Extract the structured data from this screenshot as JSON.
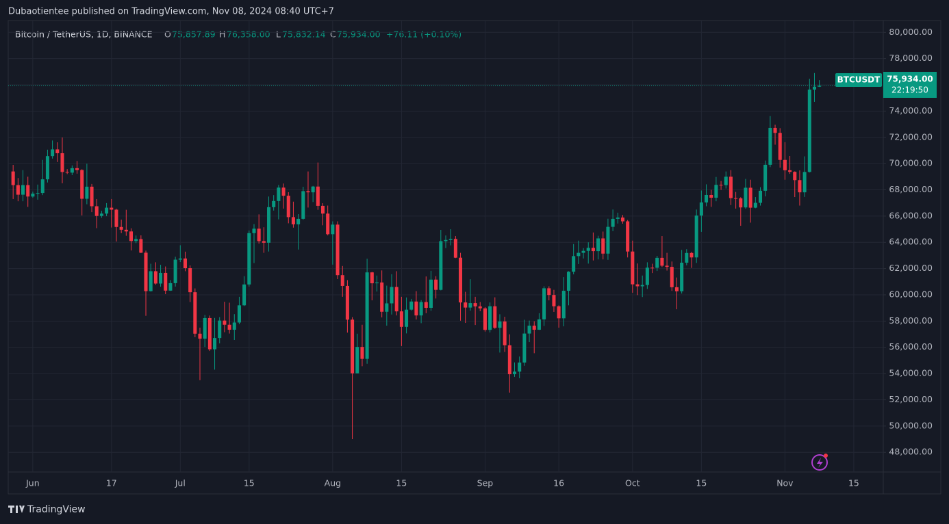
{
  "header": {
    "byline": "Dubaotientee published on TradingView.com, Nov 08, 2024 08:40 UTC+7",
    "footer": "TradingView"
  },
  "chart_data": {
    "type": "candlestick",
    "symbol": "Bitcoin / TetherUS, 1D, BINANCE",
    "legend": {
      "O": "75,857.89",
      "H": "76,358.00",
      "L": "75,832.14",
      "C": "75,934.00",
      "change": "+76.11 (+0.10%)"
    },
    "price_label": {
      "ticker": "BTCUSDT",
      "price": "75,934.00",
      "countdown": "22:19:50"
    },
    "up_color": "#089981",
    "down_color": "#f23645",
    "xlim": [
      "2024-05-27",
      "2024-11-21"
    ],
    "xticks": [
      {
        "value": "2024-06-01",
        "label": "Jun"
      },
      {
        "value": "2024-06-17",
        "label": "17"
      },
      {
        "value": "2024-07-01",
        "label": "Jul"
      },
      {
        "value": "2024-07-15",
        "label": "15"
      },
      {
        "value": "2024-08-01",
        "label": "Aug"
      },
      {
        "value": "2024-08-15",
        "label": "15"
      },
      {
        "value": "2024-09-01",
        "label": "Sep"
      },
      {
        "value": "2024-09-16",
        "label": "16"
      },
      {
        "value": "2024-10-01",
        "label": "Oct"
      },
      {
        "value": "2024-10-15",
        "label": "15"
      },
      {
        "value": "2024-11-01",
        "label": "Nov"
      },
      {
        "value": "2024-11-15",
        "label": "15"
      }
    ],
    "ylim": [
      46500,
      80900
    ],
    "yticks": [
      {
        "value": 48000,
        "label": "48,000.00"
      },
      {
        "value": 50000,
        "label": "50,000.00"
      },
      {
        "value": 52000,
        "label": "52,000.00"
      },
      {
        "value": 54000,
        "label": "54,000.00"
      },
      {
        "value": 56000,
        "label": "56,000.00"
      },
      {
        "value": 58000,
        "label": "58,000.00"
      },
      {
        "value": 60000,
        "label": "60,000.00"
      },
      {
        "value": 62000,
        "label": "62,000.00"
      },
      {
        "value": 64000,
        "label": "64,000.00"
      },
      {
        "value": 66000,
        "label": "66,000.00"
      },
      {
        "value": 68000,
        "label": "68,000.00"
      },
      {
        "value": 70000,
        "label": "70,000.00"
      },
      {
        "value": 72000,
        "label": "72,000.00"
      },
      {
        "value": 74000,
        "label": "74,000.00"
      },
      {
        "value": 76000,
        "label": "76,000.00"
      },
      {
        "value": 78000,
        "label": "78,000.00"
      },
      {
        "value": 80000,
        "label": "80,000.00"
      }
    ],
    "grid": true,
    "x": [
      "2024-05-28",
      "2024-05-29",
      "2024-05-30",
      "2024-05-31",
      "2024-06-01",
      "2024-06-02",
      "2024-06-03",
      "2024-06-04",
      "2024-06-05",
      "2024-06-06",
      "2024-06-07",
      "2024-06-08",
      "2024-06-09",
      "2024-06-10",
      "2024-06-11",
      "2024-06-12",
      "2024-06-13",
      "2024-06-14",
      "2024-06-15",
      "2024-06-16",
      "2024-06-17",
      "2024-06-18",
      "2024-06-19",
      "2024-06-20",
      "2024-06-21",
      "2024-06-22",
      "2024-06-23",
      "2024-06-24",
      "2024-06-25",
      "2024-06-26",
      "2024-06-27",
      "2024-06-28",
      "2024-06-29",
      "2024-06-30",
      "2024-07-01",
      "2024-07-02",
      "2024-07-03",
      "2024-07-04",
      "2024-07-05",
      "2024-07-06",
      "2024-07-07",
      "2024-07-08",
      "2024-07-09",
      "2024-07-10",
      "2024-07-11",
      "2024-07-12",
      "2024-07-13",
      "2024-07-14",
      "2024-07-15",
      "2024-07-16",
      "2024-07-17",
      "2024-07-18",
      "2024-07-19",
      "2024-07-20",
      "2024-07-21",
      "2024-07-22",
      "2024-07-23",
      "2024-07-24",
      "2024-07-25",
      "2024-07-26",
      "2024-07-27",
      "2024-07-28",
      "2024-07-29",
      "2024-07-30",
      "2024-07-31",
      "2024-08-01",
      "2024-08-02",
      "2024-08-03",
      "2024-08-04",
      "2024-08-05",
      "2024-08-06",
      "2024-08-07",
      "2024-08-08",
      "2024-08-09",
      "2024-08-10",
      "2024-08-11",
      "2024-08-12",
      "2024-08-13",
      "2024-08-14",
      "2024-08-15",
      "2024-08-16",
      "2024-08-17",
      "2024-08-18",
      "2024-08-19",
      "2024-08-20",
      "2024-08-21",
      "2024-08-22",
      "2024-08-23",
      "2024-08-24",
      "2024-08-25",
      "2024-08-26",
      "2024-08-27",
      "2024-08-28",
      "2024-08-29",
      "2024-08-30",
      "2024-08-31",
      "2024-09-01",
      "2024-09-02",
      "2024-09-03",
      "2024-09-04",
      "2024-09-05",
      "2024-09-06",
      "2024-09-07",
      "2024-09-08",
      "2024-09-09",
      "2024-09-10",
      "2024-09-11",
      "2024-09-12",
      "2024-09-13",
      "2024-09-14",
      "2024-09-15",
      "2024-09-16",
      "2024-09-17",
      "2024-09-18",
      "2024-09-19",
      "2024-09-20",
      "2024-09-21",
      "2024-09-22",
      "2024-09-23",
      "2024-09-24",
      "2024-09-25",
      "2024-09-26",
      "2024-09-27",
      "2024-09-28",
      "2024-09-29",
      "2024-09-30",
      "2024-10-01",
      "2024-10-02",
      "2024-10-03",
      "2024-10-04",
      "2024-10-05",
      "2024-10-06",
      "2024-10-07",
      "2024-10-08",
      "2024-10-09",
      "2024-10-10",
      "2024-10-11",
      "2024-10-12",
      "2024-10-13",
      "2024-10-14",
      "2024-10-15",
      "2024-10-16",
      "2024-10-17",
      "2024-10-18",
      "2024-10-19",
      "2024-10-20",
      "2024-10-21",
      "2024-10-22",
      "2024-10-23",
      "2024-10-24",
      "2024-10-25",
      "2024-10-26",
      "2024-10-27",
      "2024-10-28",
      "2024-10-29",
      "2024-10-30",
      "2024-10-31",
      "2024-11-01",
      "2024-11-02",
      "2024-11-03",
      "2024-11-04",
      "2024-11-05",
      "2024-11-06",
      "2024-11-07",
      "2024-11-08"
    ],
    "ohlc": [
      [
        69400,
        69900,
        67300,
        68360
      ],
      [
        68360,
        68900,
        67130,
        67630
      ],
      [
        67630,
        69500,
        67130,
        68360
      ],
      [
        68360,
        69000,
        66700,
        67490
      ],
      [
        67490,
        67860,
        67400,
        67710
      ],
      [
        67710,
        68400,
        67250,
        67760
      ],
      [
        67760,
        70280,
        67600,
        68800
      ],
      [
        68800,
        71060,
        68560,
        70570
      ],
      [
        70570,
        71760,
        70380,
        71080
      ],
      [
        71080,
        71620,
        70120,
        70790
      ],
      [
        70790,
        71990,
        68500,
        69360
      ],
      [
        69360,
        69580,
        69200,
        69310
      ],
      [
        69310,
        69860,
        69120,
        69650
      ],
      [
        69650,
        70200,
        69230,
        69510
      ],
      [
        69510,
        69570,
        66050,
        67320
      ],
      [
        67320,
        69990,
        66900,
        68240
      ],
      [
        68240,
        68450,
        66300,
        66750
      ],
      [
        66750,
        67300,
        65080,
        66010
      ],
      [
        66010,
        66400,
        65870,
        66190
      ],
      [
        66190,
        66990,
        65990,
        66640
      ],
      [
        66640,
        67300,
        65130,
        66490
      ],
      [
        66490,
        66560,
        64060,
        65170
      ],
      [
        65170,
        65730,
        64700,
        64960
      ],
      [
        64960,
        66480,
        64500,
        64830
      ],
      [
        64830,
        65070,
        63380,
        64100
      ],
      [
        64100,
        64520,
        63940,
        64250
      ],
      [
        64250,
        64530,
        63180,
        63210
      ],
      [
        63210,
        63370,
        58400,
        60280
      ],
      [
        60280,
        62370,
        60250,
        61800
      ],
      [
        61800,
        62480,
        60770,
        60860
      ],
      [
        60860,
        62290,
        60620,
        61670
      ],
      [
        61670,
        62160,
        60050,
        60320
      ],
      [
        60320,
        61120,
        60300,
        60890
      ],
      [
        60890,
        62900,
        60630,
        62680
      ],
      [
        62680,
        63780,
        62500,
        62770
      ],
      [
        62770,
        63290,
        61800,
        62030
      ],
      [
        62030,
        62240,
        59450,
        60200
      ],
      [
        60200,
        60490,
        56770,
        57040
      ],
      [
        57040,
        57500,
        53500,
        56660
      ],
      [
        56660,
        58470,
        56030,
        58230
      ],
      [
        58230,
        58420,
        55720,
        55850
      ],
      [
        55850,
        58240,
        54300,
        56710
      ],
      [
        56710,
        58300,
        56300,
        58040
      ],
      [
        58040,
        59470,
        57150,
        57720
      ],
      [
        57720,
        59400,
        57050,
        57340
      ],
      [
        57340,
        58530,
        56560,
        57890
      ],
      [
        57890,
        59850,
        57760,
        59200
      ],
      [
        59200,
        61420,
        59150,
        60790
      ],
      [
        60790,
        64900,
        60630,
        64700
      ],
      [
        64700,
        65390,
        62420,
        65040
      ],
      [
        65040,
        66130,
        63900,
        64090
      ],
      [
        64090,
        65150,
        63200,
        63970
      ],
      [
        63970,
        67490,
        63300,
        66680
      ],
      [
        66680,
        67600,
        66420,
        67150
      ],
      [
        67150,
        68370,
        65750,
        68170
      ],
      [
        68170,
        68480,
        66570,
        67550
      ],
      [
        67550,
        67820,
        65450,
        65920
      ],
      [
        65920,
        67100,
        65120,
        65370
      ],
      [
        65370,
        66150,
        63450,
        65790
      ],
      [
        65790,
        68230,
        65720,
        67900
      ],
      [
        67900,
        69400,
        66650,
        67810
      ],
      [
        67810,
        68300,
        67070,
        68250
      ],
      [
        68250,
        70080,
        66480,
        66780
      ],
      [
        66780,
        66980,
        65300,
        66190
      ],
      [
        66190,
        66800,
        64530,
        64620
      ],
      [
        64620,
        65600,
        62300,
        65350
      ],
      [
        65350,
        65600,
        61200,
        61500
      ],
      [
        61500,
        62200,
        59850,
        60680
      ],
      [
        60680,
        61120,
        57120,
        58110
      ],
      [
        58110,
        58300,
        49000,
        54020
      ],
      [
        54020,
        57040,
        54020,
        56030
      ],
      [
        56030,
        57720,
        54560,
        55120
      ],
      [
        55120,
        62750,
        54750,
        61710
      ],
      [
        61710,
        61750,
        59580,
        60880
      ],
      [
        60880,
        61470,
        60250,
        60940
      ],
      [
        60940,
        61860,
        58280,
        58710
      ],
      [
        58710,
        60700,
        57650,
        59350
      ],
      [
        59350,
        61570,
        58500,
        60600
      ],
      [
        60600,
        61800,
        58430,
        58740
      ],
      [
        58740,
        59850,
        56100,
        57560
      ],
      [
        57560,
        59800,
        57060,
        58870
      ],
      [
        58870,
        59690,
        58800,
        59490
      ],
      [
        59490,
        60280,
        58120,
        58430
      ],
      [
        58430,
        59600,
        57840,
        59450
      ],
      [
        59450,
        61400,
        58600,
        59010
      ],
      [
        59010,
        61830,
        58780,
        61160
      ],
      [
        61160,
        61420,
        59720,
        60380
      ],
      [
        60380,
        64950,
        60340,
        64090
      ],
      [
        64090,
        64520,
        63560,
        64180
      ],
      [
        64180,
        65000,
        63770,
        64260
      ],
      [
        64260,
        64480,
        62800,
        62830
      ],
      [
        62830,
        63200,
        58030,
        59420
      ],
      [
        59420,
        60230,
        57860,
        59030
      ],
      [
        59030,
        61190,
        58790,
        59370
      ],
      [
        59370,
        59850,
        57700,
        59120
      ],
      [
        59120,
        59450,
        58750,
        58970
      ],
      [
        58970,
        59060,
        57200,
        57330
      ],
      [
        57330,
        59420,
        57130,
        59130
      ],
      [
        59130,
        59810,
        57410,
        57490
      ],
      [
        57490,
        58520,
        55600,
        57970
      ],
      [
        57970,
        58330,
        55650,
        56160
      ],
      [
        56160,
        56990,
        52550,
        53950
      ],
      [
        53950,
        54850,
        53750,
        54150
      ],
      [
        54150,
        55300,
        53650,
        54840
      ],
      [
        54840,
        58100,
        54590,
        57050
      ],
      [
        57050,
        58040,
        56400,
        57650
      ],
      [
        57650,
        57990,
        55550,
        57340
      ],
      [
        57340,
        58600,
        57320,
        58130
      ],
      [
        58130,
        60650,
        57630,
        60500
      ],
      [
        60500,
        60650,
        59580,
        59990
      ],
      [
        59990,
        60380,
        58700,
        59130
      ],
      [
        59130,
        59200,
        57500,
        58210
      ],
      [
        58210,
        61350,
        57600,
        60310
      ],
      [
        60310,
        61800,
        59200,
        61760
      ],
      [
        61760,
        63870,
        61560,
        62950
      ],
      [
        62950,
        64130,
        62350,
        63200
      ],
      [
        63200,
        63560,
        62770,
        63350
      ],
      [
        63350,
        64000,
        62380,
        63580
      ],
      [
        63580,
        64750,
        62620,
        63330
      ],
      [
        63330,
        64500,
        62700,
        64300
      ],
      [
        64300,
        64820,
        62700,
        63140
      ],
      [
        63140,
        65800,
        62670,
        65180
      ],
      [
        65180,
        66500,
        64850,
        65790
      ],
      [
        65790,
        66260,
        65430,
        65890
      ],
      [
        65890,
        66080,
        65420,
        65600
      ],
      [
        65600,
        65700,
        62850,
        63300
      ],
      [
        63300,
        64130,
        60160,
        60800
      ],
      [
        60800,
        62390,
        59980,
        60650
      ],
      [
        60650,
        61470,
        59830,
        60750
      ],
      [
        60750,
        62480,
        60450,
        62070
      ],
      [
        62070,
        62370,
        61660,
        62060
      ],
      [
        62060,
        62970,
        61820,
        62820
      ],
      [
        62820,
        64480,
        62120,
        62220
      ],
      [
        62220,
        63200,
        61850,
        62130
      ],
      [
        62130,
        62540,
        60300,
        60580
      ],
      [
        60580,
        61320,
        58900,
        60270
      ],
      [
        60270,
        63420,
        60100,
        62450
      ],
      [
        62450,
        63480,
        62250,
        63190
      ],
      [
        63190,
        63280,
        62050,
        62850
      ],
      [
        62850,
        66500,
        62430,
        66040
      ],
      [
        66040,
        67950,
        64800,
        67040
      ],
      [
        67040,
        68420,
        66750,
        67610
      ],
      [
        67610,
        68000,
        66700,
        67400
      ],
      [
        67400,
        68980,
        67130,
        68380
      ],
      [
        68380,
        68670,
        68000,
        68360
      ],
      [
        68360,
        69400,
        68100,
        69000
      ],
      [
        69000,
        69500,
        66840,
        67370
      ],
      [
        67370,
        67840,
        66570,
        67350
      ],
      [
        67350,
        67440,
        65260,
        66660
      ],
      [
        66660,
        68830,
        66560,
        68160
      ],
      [
        68160,
        68770,
        65500,
        66640
      ],
      [
        66640,
        67450,
        66600,
        67010
      ],
      [
        67010,
        68200,
        66800,
        67930
      ],
      [
        67930,
        70230,
        67500,
        69910
      ],
      [
        69910,
        73620,
        69730,
        72720
      ],
      [
        72720,
        72960,
        71440,
        72340
      ],
      [
        72340,
        72700,
        69690,
        70280
      ],
      [
        70280,
        71630,
        68770,
        69490
      ],
      [
        69490,
        70580,
        69220,
        69370
      ],
      [
        69370,
        69410,
        67450,
        68740
      ],
      [
        68740,
        69480,
        66800,
        67810
      ],
      [
        67810,
        70550,
        67460,
        69360
      ],
      [
        69360,
        76460,
        69320,
        75640
      ],
      [
        75640,
        76900,
        74700,
        75857.89
      ],
      [
        75857.89,
        76358,
        75832.14,
        75934
      ]
    ]
  }
}
